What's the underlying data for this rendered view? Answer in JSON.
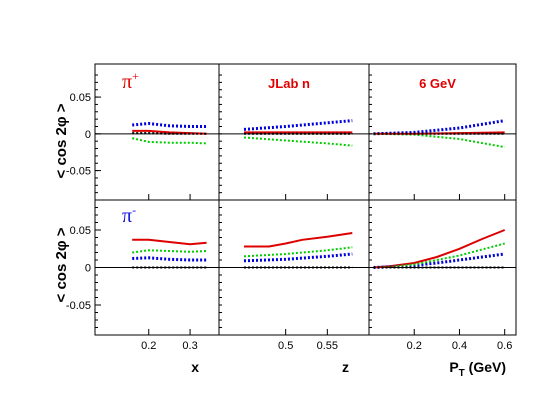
{
  "chart_data": {
    "type": "line",
    "ylabel": "< cos 2φ >",
    "rows": [
      {
        "label": "π",
        "label_sup": "+",
        "label_color": "#e00000",
        "ylim": [
          -0.09,
          0.095
        ],
        "yticks": [
          -0.05,
          0,
          0.05
        ],
        "ytick_labels": [
          "-0.05",
          "0",
          "0.05"
        ]
      },
      {
        "label": "π",
        "label_sup": "-",
        "label_color": "#1010e0",
        "ylim": [
          -0.09,
          0.09
        ],
        "yticks": [
          -0.05,
          0,
          0.05
        ],
        "ytick_labels": [
          "-0.05",
          "0",
          "0.05"
        ]
      }
    ],
    "columns": [
      {
        "xlabel": "x",
        "xlim": [
          0.07,
          0.37
        ],
        "xticks": [
          0.2,
          0.3
        ],
        "xtick_labels": [
          "0.2",
          "0.3"
        ],
        "annotation": ""
      },
      {
        "xlabel": "z",
        "xlim": [
          0.42,
          0.6
        ],
        "xticks": [
          0.5,
          0.55
        ],
        "xtick_labels": [
          "0.5",
          "0.55"
        ],
        "annotation": "JLab n"
      },
      {
        "xlabel": "P",
        "xlabel_sub": "T",
        "xlabel_unit": " (GeV)",
        "xlim": [
          0.0,
          0.65
        ],
        "xticks": [
          0.2,
          0.4,
          0.6
        ],
        "xtick_labels": [
          "0.2",
          "0.4",
          "0.6"
        ],
        "annotation": "6 GeV"
      }
    ],
    "series_styles": [
      {
        "color": "#dd0000",
        "style": "solid",
        "width": 2
      },
      {
        "color": "#0000dd",
        "style": "dotted",
        "width": 3
      },
      {
        "color": "#00cc00",
        "style": "dotted",
        "width": 2
      },
      {
        "color": "#000000",
        "style": "dotted",
        "width": 2
      }
    ],
    "panels": [
      {
        "row": 0,
        "col": 0,
        "series": [
          {
            "x": [
              0.16,
              0.2,
              0.25,
              0.3,
              0.34
            ],
            "y": [
              0.004,
              0.004,
              0.002,
              0.001,
              0.0
            ]
          },
          {
            "x": [
              0.16,
              0.2,
              0.25,
              0.3,
              0.34
            ],
            "y": [
              0.012,
              0.014,
              0.011,
              0.01,
              0.01
            ]
          },
          {
            "x": [
              0.16,
              0.2,
              0.25,
              0.3,
              0.34
            ],
            "y": [
              -0.006,
              -0.011,
              -0.012,
              -0.012,
              -0.013
            ]
          },
          {
            "x": [
              0.16,
              0.2,
              0.25,
              0.3,
              0.34
            ],
            "y": [
              0.001,
              0.001,
              0.0,
              0.0,
              0.0
            ]
          }
        ]
      },
      {
        "row": 0,
        "col": 1,
        "series": [
          {
            "x": [
              0.45,
              0.5,
              0.55,
              0.58
            ],
            "y": [
              0.002,
              0.002,
              0.002,
              0.002
            ]
          },
          {
            "x": [
              0.45,
              0.5,
              0.55,
              0.58
            ],
            "y": [
              0.006,
              0.01,
              0.015,
              0.018
            ]
          },
          {
            "x": [
              0.45,
              0.5,
              0.55,
              0.58
            ],
            "y": [
              -0.005,
              -0.009,
              -0.013,
              -0.016
            ]
          },
          {
            "x": [
              0.45,
              0.5,
              0.55,
              0.58
            ],
            "y": [
              0.0,
              0.0,
              0.0,
              0.0
            ]
          }
        ]
      },
      {
        "row": 0,
        "col": 2,
        "series": [
          {
            "x": [
              0.02,
              0.2,
              0.4,
              0.6
            ],
            "y": [
              0.0,
              0.0,
              0.001,
              0.002
            ]
          },
          {
            "x": [
              0.02,
              0.2,
              0.4,
              0.6
            ],
            "y": [
              0.0,
              0.002,
              0.008,
              0.018
            ]
          },
          {
            "x": [
              0.02,
              0.2,
              0.4,
              0.6
            ],
            "y": [
              0.0,
              -0.001,
              -0.007,
              -0.018
            ]
          },
          {
            "x": [
              0.02,
              0.2,
              0.4,
              0.6
            ],
            "y": [
              0.0,
              0.0,
              0.0,
              0.0
            ]
          }
        ]
      },
      {
        "row": 1,
        "col": 0,
        "series": [
          {
            "x": [
              0.16,
              0.2,
              0.25,
              0.3,
              0.34
            ],
            "y": [
              0.037,
              0.037,
              0.034,
              0.031,
              0.033
            ]
          },
          {
            "x": [
              0.16,
              0.2,
              0.25,
              0.3,
              0.34
            ],
            "y": [
              0.012,
              0.013,
              0.011,
              0.01,
              0.01
            ]
          },
          {
            "x": [
              0.16,
              0.2,
              0.25,
              0.3,
              0.34
            ],
            "y": [
              0.02,
              0.023,
              0.022,
              0.021,
              0.022
            ]
          },
          {
            "x": [
              0.16,
              0.2,
              0.25,
              0.3,
              0.34
            ],
            "y": [
              0.0,
              0.0,
              0.0,
              0.0,
              0.0
            ]
          }
        ]
      },
      {
        "row": 1,
        "col": 1,
        "series": [
          {
            "x": [
              0.45,
              0.48,
              0.5,
              0.52,
              0.55,
              0.58
            ],
            "y": [
              0.028,
              0.028,
              0.032,
              0.037,
              0.041,
              0.046
            ]
          },
          {
            "x": [
              0.45,
              0.5,
              0.55,
              0.58
            ],
            "y": [
              0.009,
              0.011,
              0.015,
              0.018
            ]
          },
          {
            "x": [
              0.45,
              0.5,
              0.55,
              0.58
            ],
            "y": [
              0.015,
              0.018,
              0.023,
              0.027
            ]
          },
          {
            "x": [
              0.45,
              0.5,
              0.55,
              0.58
            ],
            "y": [
              0.0,
              0.0,
              0.0,
              0.0
            ]
          }
        ]
      },
      {
        "row": 1,
        "col": 2,
        "series": [
          {
            "x": [
              0.02,
              0.1,
              0.2,
              0.3,
              0.4,
              0.5,
              0.6
            ],
            "y": [
              0.0,
              0.002,
              0.006,
              0.014,
              0.025,
              0.038,
              0.05
            ]
          },
          {
            "x": [
              0.02,
              0.1,
              0.2,
              0.3,
              0.4,
              0.5,
              0.6
            ],
            "y": [
              0.0,
              0.001,
              0.003,
              0.006,
              0.01,
              0.014,
              0.018
            ]
          },
          {
            "x": [
              0.02,
              0.1,
              0.2,
              0.3,
              0.4,
              0.5,
              0.6
            ],
            "y": [
              0.0,
              0.001,
              0.004,
              0.01,
              0.016,
              0.024,
              0.032
            ]
          },
          {
            "x": [
              0.02,
              0.2,
              0.4,
              0.6
            ],
            "y": [
              0.0,
              0.0,
              0.0,
              0.0
            ]
          }
        ]
      }
    ]
  }
}
